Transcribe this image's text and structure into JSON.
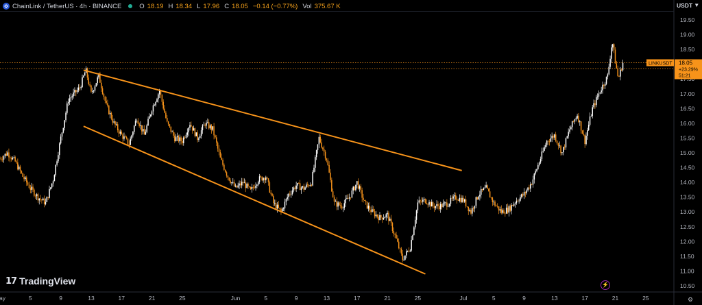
{
  "header": {
    "symbol": "ChainLink / TetherUS · 4h · BINANCE",
    "open_label": "O",
    "open": "18.19",
    "high_label": "H",
    "high": "18.34",
    "low_label": "L",
    "low": "17.96",
    "close_label": "C",
    "close": "18.05",
    "change": "−0.14 (−0.77%)",
    "vol_label": "Vol",
    "vol": "375.67 K"
  },
  "currency": "USDT",
  "price_tag": {
    "symbol": "LINKUSDT",
    "price": "18.05",
    "change_pct": "+23.29%",
    "countdown": "51:21"
  },
  "watermark": "TradingView",
  "icons": {
    "logo": "tradingview-logo-icon",
    "lightning": "lightning-icon",
    "settings": "gear-icon",
    "dropdown": "chevron-down-icon"
  },
  "colors": {
    "background": "#000000",
    "up": "#ffffff",
    "down": "#f7931a",
    "trendline": "#f7931a",
    "axis_text": "#b2b5be"
  },
  "chart_data": {
    "type": "candlestick",
    "title": "",
    "y_axis": {
      "min": 10.5,
      "max": 19.5,
      "step": 0.5,
      "ticks": [
        "10.50",
        "11.00",
        "11.50",
        "12.00",
        "12.50",
        "13.00",
        "13.50",
        "14.00",
        "14.50",
        "15.00",
        "15.50",
        "16.00",
        "16.50",
        "17.00",
        "17.50",
        "18.00",
        "18.50",
        "19.00",
        "19.50"
      ]
    },
    "x_axis": {
      "ticks": [
        {
          "label": "May",
          "day": 0
        },
        {
          "label": "5",
          "day": 4
        },
        {
          "label": "9",
          "day": 8
        },
        {
          "label": "13",
          "day": 12
        },
        {
          "label": "17",
          "day": 16
        },
        {
          "label": "21",
          "day": 20
        },
        {
          "label": "25",
          "day": 24
        },
        {
          "label": "Jun",
          "day": 31
        },
        {
          "label": "5",
          "day": 35
        },
        {
          "label": "9",
          "day": 39
        },
        {
          "label": "13",
          "day": 43
        },
        {
          "label": "17",
          "day": 47
        },
        {
          "label": "21",
          "day": 51
        },
        {
          "label": "25",
          "day": 55
        },
        {
          "label": "Jul",
          "day": 61
        },
        {
          "label": "5",
          "day": 65
        },
        {
          "label": "9",
          "day": 69
        },
        {
          "label": "13",
          "day": 73
        },
        {
          "label": "17",
          "day": 77
        },
        {
          "label": "21",
          "day": 81
        },
        {
          "label": "25",
          "day": 85
        }
      ]
    },
    "price_path_close": [
      [
        0.0,
        14.8
      ],
      [
        1.0,
        15.0
      ],
      [
        2.0,
        14.7
      ],
      [
        3.0,
        14.2
      ],
      [
        4.0,
        13.8
      ],
      [
        5.0,
        13.5
      ],
      [
        6.0,
        13.3
      ],
      [
        7.0,
        14.1
      ],
      [
        8.0,
        15.5
      ],
      [
        9.0,
        16.8
      ],
      [
        10.5,
        17.2
      ],
      [
        11.3,
        17.8
      ],
      [
        12.0,
        17.0
      ],
      [
        13.0,
        17.6
      ],
      [
        14.0,
        16.6
      ],
      [
        15.0,
        16.0
      ],
      [
        16.0,
        15.6
      ],
      [
        17.0,
        15.3
      ],
      [
        18.0,
        16.2
      ],
      [
        19.0,
        15.6
      ],
      [
        20.0,
        16.5
      ],
      [
        21.0,
        17.1
      ],
      [
        22.0,
        16.0
      ],
      [
        23.0,
        15.5
      ],
      [
        24.0,
        15.4
      ],
      [
        25.0,
        16.0
      ],
      [
        26.0,
        15.5
      ],
      [
        27.0,
        16.0
      ],
      [
        28.0,
        15.8
      ],
      [
        29.0,
        14.8
      ],
      [
        30.0,
        14.2
      ],
      [
        31.0,
        13.8
      ],
      [
        32.0,
        14.0
      ],
      [
        33.0,
        13.7
      ],
      [
        34.0,
        14.1
      ],
      [
        35.0,
        14.2
      ],
      [
        36.0,
        13.3
      ],
      [
        37.0,
        13.0
      ],
      [
        38.0,
        13.6
      ],
      [
        39.0,
        13.9
      ],
      [
        40.0,
        13.8
      ],
      [
        41.0,
        14.0
      ],
      [
        42.0,
        15.5
      ],
      [
        43.0,
        14.8
      ],
      [
        44.0,
        13.3
      ],
      [
        45.0,
        13.2
      ],
      [
        46.0,
        13.5
      ],
      [
        47.0,
        14.0
      ],
      [
        48.0,
        13.3
      ],
      [
        49.0,
        13.0
      ],
      [
        50.0,
        12.8
      ],
      [
        51.0,
        12.9
      ],
      [
        52.0,
        12.2
      ],
      [
        53.0,
        11.4
      ],
      [
        54.0,
        11.8
      ],
      [
        55.0,
        13.3
      ],
      [
        56.0,
        13.4
      ],
      [
        57.0,
        13.2
      ],
      [
        58.0,
        13.2
      ],
      [
        59.0,
        13.3
      ],
      [
        60.0,
        13.5
      ],
      [
        61.0,
        13.4
      ],
      [
        62.0,
        13.0
      ],
      [
        63.0,
        13.6
      ],
      [
        64.0,
        13.8
      ],
      [
        65.0,
        13.3
      ],
      [
        66.0,
        13.0
      ],
      [
        67.0,
        13.1
      ],
      [
        68.0,
        13.4
      ],
      [
        69.0,
        13.6
      ],
      [
        70.0,
        14.0
      ],
      [
        71.0,
        14.7
      ],
      [
        72.0,
        15.4
      ],
      [
        73.0,
        15.6
      ],
      [
        74.0,
        15.0
      ],
      [
        75.0,
        15.8
      ],
      [
        76.0,
        16.3
      ],
      [
        77.0,
        15.4
      ],
      [
        78.0,
        16.5
      ],
      [
        79.0,
        17.1
      ],
      [
        80.0,
        17.6
      ],
      [
        80.6,
        18.8
      ],
      [
        81.0,
        18.1
      ],
      [
        81.4,
        17.5
      ],
      [
        82.0,
        18.05
      ]
    ],
    "trendlines": [
      {
        "name": "upper",
        "from": [
          11.0,
          17.8
        ],
        "to": [
          60.8,
          14.4
        ]
      },
      {
        "name": "lower",
        "from": [
          11.0,
          15.9
        ],
        "to": [
          56.0,
          10.9
        ]
      }
    ],
    "horizontal_lines": [
      {
        "price": 18.05
      },
      {
        "price": 17.85
      }
    ],
    "x_max_day": 88,
    "grid": false
  }
}
